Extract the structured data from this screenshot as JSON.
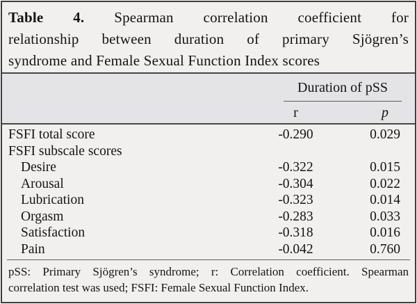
{
  "table": {
    "title": {
      "line1_bold": "Table 4.",
      "line1_rest": "Spearman correlation coefficient for",
      "line2": "relationship between duration of primary Sjögren’s",
      "line3": "syndrome and Female Sexual Function Index scores"
    },
    "header": {
      "group": "Duration of pSS",
      "col_r": "r",
      "col_p": "p"
    },
    "rows": [
      {
        "label": "FSFI total score",
        "r": "-0.290",
        "p": "0.029"
      },
      {
        "label": "FSFI subscale scores",
        "r": "",
        "p": ""
      },
      {
        "label": "Desire",
        "r": "-0.322",
        "p": "0.015"
      },
      {
        "label": "Arousal",
        "r": "-0.304",
        "p": "0.022"
      },
      {
        "label": "Lubrication",
        "r": "-0.323",
        "p": "0.014"
      },
      {
        "label": "Orgasm",
        "r": "-0.283",
        "p": "0.033"
      },
      {
        "label": "Satisfaction",
        "r": "-0.318",
        "p": "0.016"
      },
      {
        "label": "Pain",
        "r": "-0.042",
        "p": "0.760"
      }
    ],
    "footnote": {
      "line1": "pSS: Primary Sjögren’s syndrome; r: Correlation coefficient. Spearman",
      "line2": "correlation test was used; FSFI: Female Sexual Function Index."
    }
  },
  "colors": {
    "page_bg": "#f1f0ee",
    "header_band_bg": "#e4e4e6",
    "border": "#3d3d3d",
    "rule_heavy": "#474747",
    "rule_thin": "#5c5c5c",
    "text": "#141414"
  },
  "chart_data": {
    "type": "table",
    "title": "Table 4. Spearman correlation coefficient for relationship between duration of primary Sjögren’s syndrome and Female Sexual Function Index scores",
    "column_group": "Duration of pSS",
    "columns": [
      "",
      "r",
      "p"
    ],
    "rows": [
      [
        "FSFI total score",
        "-0.290",
        "0.029"
      ],
      [
        "FSFI subscale scores",
        null,
        null
      ],
      [
        "Desire",
        "-0.322",
        "0.015"
      ],
      [
        "Arousal",
        "-0.304",
        "0.022"
      ],
      [
        "Lubrication",
        "-0.323",
        "0.014"
      ],
      [
        "Orgasm",
        "-0.283",
        "0.033"
      ],
      [
        "Satisfaction",
        "-0.318",
        "0.016"
      ],
      [
        "Pain",
        "-0.042",
        "0.760"
      ]
    ],
    "footnote": "pSS: Primary Sjögren’s syndrome; r: Correlation coefficient. Spearman correlation test was used; FSFI: Female Sexual Function Index."
  }
}
